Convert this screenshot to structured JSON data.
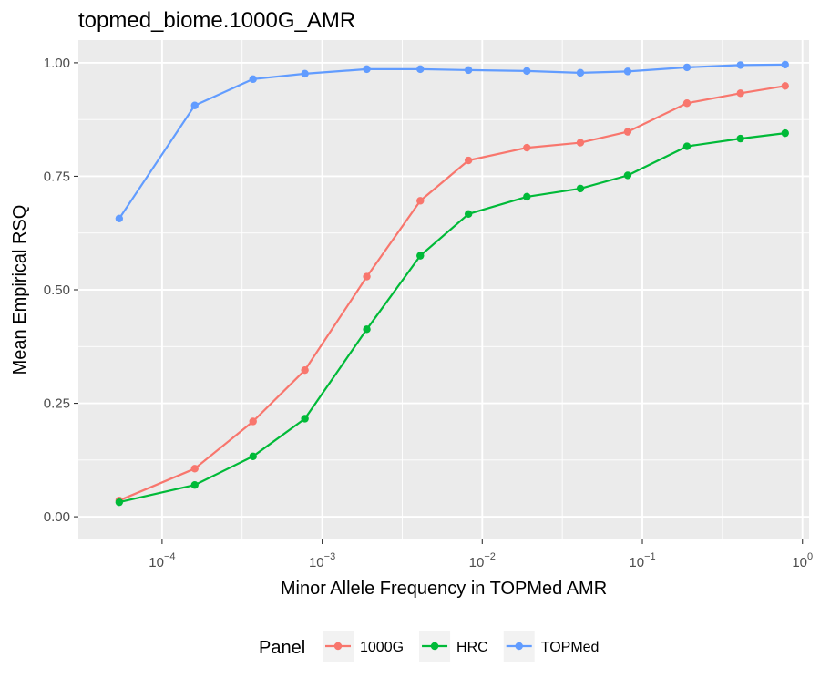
{
  "chart_data": {
    "type": "line",
    "title": "topmed_biome.1000G_AMR",
    "xlabel": "Minor Allele Frequency in TOPMed AMR",
    "ylabel": "Mean Empirical RSQ",
    "x_scale": "log10",
    "xlim": [
      3e-05,
      1.1
    ],
    "ylim": [
      -0.05,
      1.05
    ],
    "x_ticks": [
      {
        "value": 0.0001,
        "base": "10",
        "exp": "−4"
      },
      {
        "value": 0.001,
        "base": "10",
        "exp": "−3"
      },
      {
        "value": 0.01,
        "base": "10",
        "exp": "−2"
      },
      {
        "value": 0.1,
        "base": "10",
        "exp": "−1"
      },
      {
        "value": 1,
        "base": "10",
        "exp": "0"
      }
    ],
    "y_ticks": [
      {
        "value": 0,
        "label": "0.00"
      },
      {
        "value": 0.25,
        "label": "0.25"
      },
      {
        "value": 0.5,
        "label": "0.50"
      },
      {
        "value": 0.75,
        "label": "0.75"
      },
      {
        "value": 1,
        "label": "1.00"
      }
    ],
    "x": [
      5.4e-05,
      0.00016,
      0.00037,
      0.00078,
      0.0019,
      0.0041,
      0.0082,
      0.019,
      0.041,
      0.081,
      0.19,
      0.41,
      0.78
    ],
    "series": [
      {
        "name": "1000G",
        "color": "#F8766D",
        "values": [
          0.036,
          0.106,
          0.21,
          0.323,
          0.529,
          0.696,
          0.785,
          0.813,
          0.824,
          0.848,
          0.911,
          0.933,
          0.949
        ]
      },
      {
        "name": "HRC",
        "color": "#00BA38",
        "values": [
          0.032,
          0.07,
          0.133,
          0.216,
          0.413,
          0.575,
          0.667,
          0.705,
          0.723,
          0.752,
          0.816,
          0.833,
          0.845
        ]
      },
      {
        "name": "TOPMed",
        "color": "#619CFF",
        "values": [
          0.657,
          0.906,
          0.964,
          0.976,
          0.986,
          0.986,
          0.984,
          0.982,
          0.978,
          0.981,
          0.99,
          0.995,
          0.996
        ]
      }
    ],
    "legend": {
      "title": "Panel",
      "position": "bottom"
    },
    "grid": true
  },
  "colors": {
    "panel_background": "#EBEBEB",
    "grid_major": "#FFFFFF",
    "tick_text": "#4D4D4D",
    "tick_mark": "#333333"
  }
}
